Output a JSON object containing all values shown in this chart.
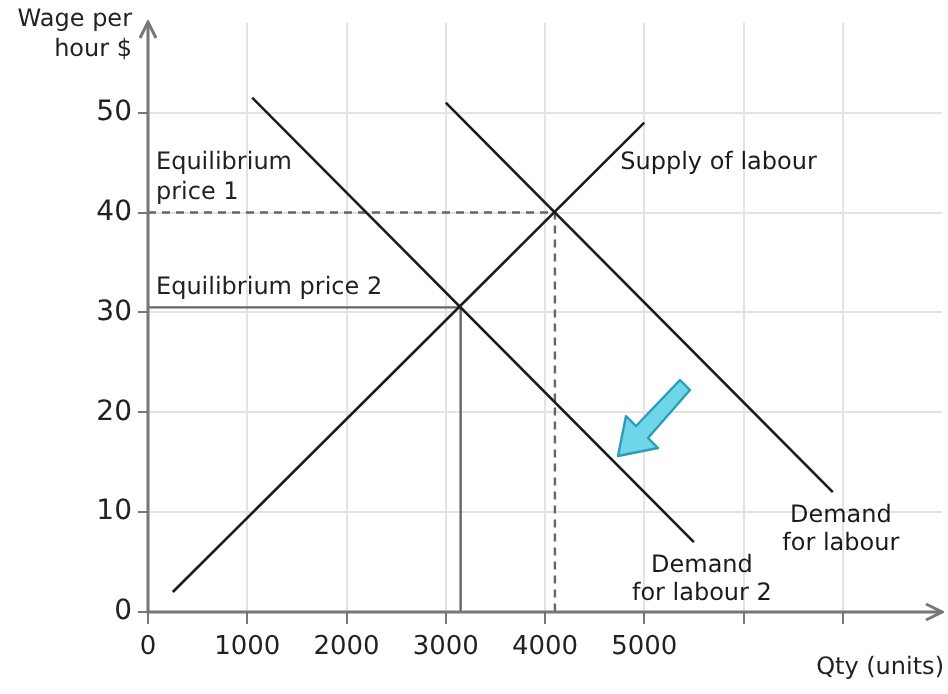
{
  "chart_data": {
    "type": "line",
    "xlabel": "Qty (units)",
    "ylabel": "Wage per hour $",
    "xlim": [
      0,
      8000
    ],
    "ylim": [
      0,
      59
    ],
    "xticks": [
      0,
      1000,
      2000,
      3000,
      4000,
      5000,
      {
        "value": 6000,
        "label": null
      },
      {
        "value": 7000,
        "label": null
      }
    ],
    "yticks": [
      0,
      10,
      20,
      30,
      40,
      50
    ],
    "grid": true,
    "legend": false,
    "marker": "none",
    "series": [
      {
        "name": "Supply of labour",
        "color": "#1a1a1a",
        "x": [
          250,
          5000
        ],
        "values": [
          2,
          49
        ]
      },
      {
        "name": "Demand for labour",
        "color": "#1a1a1a",
        "x": [
          3000,
          6900
        ],
        "values": [
          51,
          12
        ]
      },
      {
        "name": "Demand for labour 2",
        "color": "#1a1a1a",
        "x": [
          1050,
          5500
        ],
        "values": [
          51.5,
          7
        ]
      },
      {
        "color": "#666666",
        "line_style": "dashed",
        "x": [
          0,
          4100,
          4100
        ],
        "values": [
          40,
          40,
          0
        ]
      },
      {
        "color": "#666666",
        "line_style": "solid",
        "x": [
          0,
          3150,
          3150
        ],
        "values": [
          30.5,
          30.5,
          0
        ]
      }
    ],
    "annotations": [
      {
        "text": "Equilibrium\nprice 1",
        "x": 0,
        "y": 40
      },
      {
        "text": "Equilibrium price 2",
        "x": 0,
        "y": 30.5
      }
    ]
  }
}
